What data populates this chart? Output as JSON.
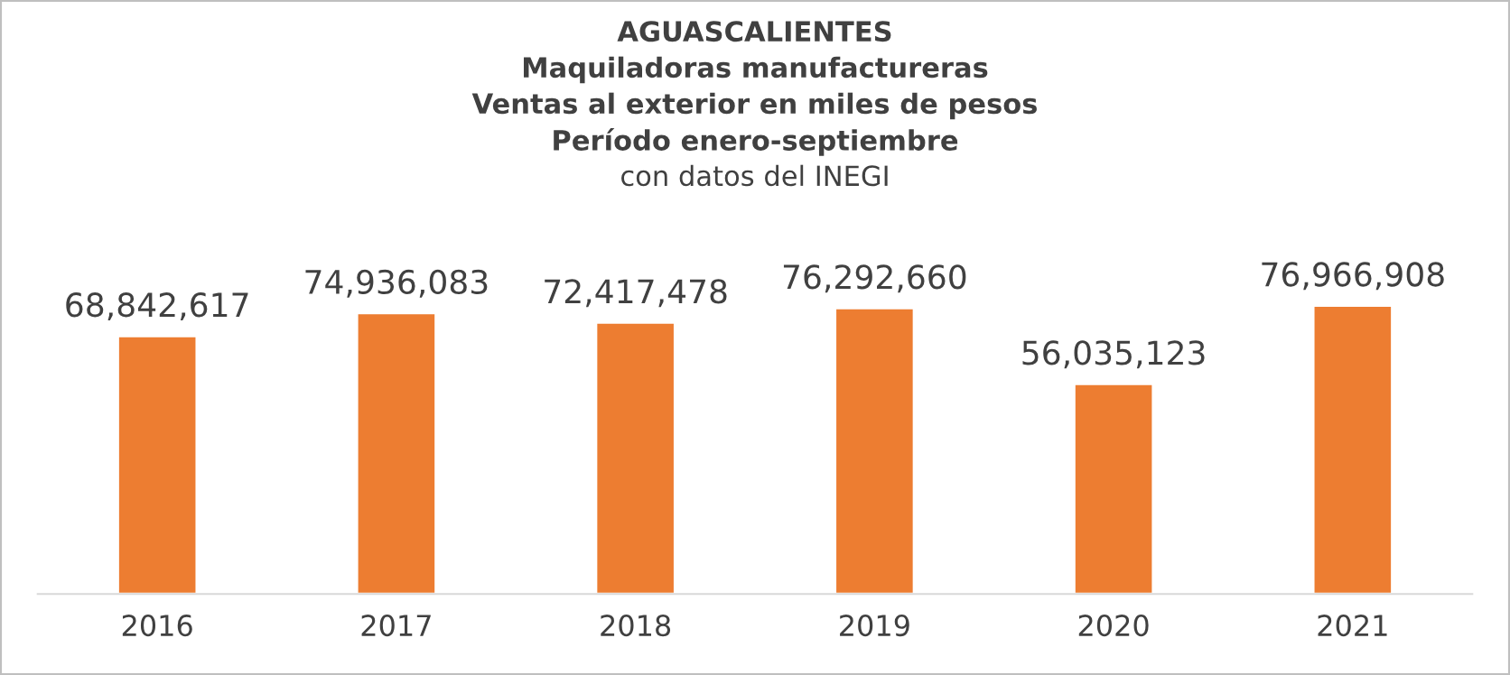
{
  "chart_data": {
    "type": "bar",
    "title": "AGUASCALIENTES",
    "subtitle": "Maquiladoras manufactureras\nVentas al exterior en miles de pesos\nPeríodo enero-septiembre",
    "annotations": [
      "con datos del INEGI"
    ],
    "categories": [
      "2016",
      "2017",
      "2018",
      "2019",
      "2020",
      "2021"
    ],
    "values": [
      68842617,
      74936083,
      72417478,
      76292660,
      56035123,
      76966908
    ],
    "value_labels": [
      "68,842,617",
      "74,936,083",
      "72,417,478",
      "76,292,660",
      "56,035,123",
      "76,966,908"
    ],
    "color": "#ed7d31",
    "grid": false,
    "legend": false,
    "tick_labels": "x"
  }
}
